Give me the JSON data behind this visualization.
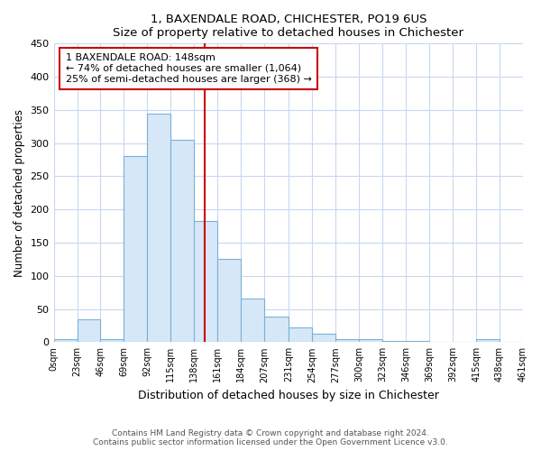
{
  "title": "1, BAXENDALE ROAD, CHICHESTER, PO19 6US",
  "subtitle": "Size of property relative to detached houses in Chichester",
  "xlabel": "Distribution of detached houses by size in Chichester",
  "ylabel": "Number of detached properties",
  "bar_edges": [
    0,
    23,
    46,
    69,
    92,
    115,
    138,
    161,
    184,
    207,
    231,
    254,
    277,
    300,
    323,
    346,
    369,
    392,
    415,
    438,
    461
  ],
  "bar_heights": [
    5,
    35,
    5,
    280,
    345,
    305,
    183,
    125,
    65,
    38,
    22,
    13,
    5,
    5,
    2,
    2,
    1,
    0,
    5,
    0
  ],
  "bar_color": "#d6e8f7",
  "bar_edgecolor": "#7ab0d8",
  "annotation_line1": "1 BAXENDALE ROAD: 148sqm",
  "annotation_line2": "← 74% of detached houses are smaller (1,064)",
  "annotation_line3": "25% of semi-detached houses are larger (368) →",
  "vline_x": 148,
  "vline_color": "#cc0000",
  "box_edgecolor": "#cc0000",
  "ylim": [
    0,
    450
  ],
  "xlim": [
    0,
    461
  ],
  "tick_labels": [
    "0sqm",
    "23sqm",
    "46sqm",
    "69sqm",
    "92sqm",
    "115sqm",
    "138sqm",
    "161sqm",
    "184sqm",
    "207sqm",
    "231sqm",
    "254sqm",
    "277sqm",
    "300sqm",
    "323sqm",
    "346sqm",
    "369sqm",
    "392sqm",
    "415sqm",
    "438sqm",
    "461sqm"
  ],
  "tick_positions": [
    0,
    23,
    46,
    69,
    92,
    115,
    138,
    161,
    184,
    207,
    231,
    254,
    277,
    300,
    323,
    346,
    369,
    392,
    415,
    438,
    461
  ],
  "footer_text": "Contains HM Land Registry data © Crown copyright and database right 2024.\nContains public sector information licensed under the Open Government Licence v3.0.",
  "bg_color": "#ffffff",
  "plot_bg_color": "#ffffff",
  "grid_color": "#c8d8f0"
}
